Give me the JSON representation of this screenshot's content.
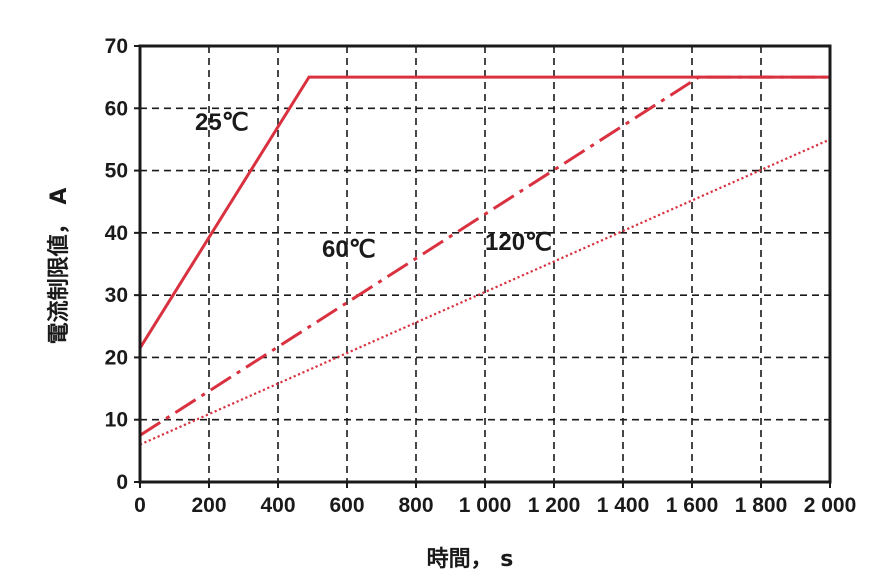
{
  "chart_data": {
    "type": "line",
    "title": "",
    "xlabel": "時間， s",
    "ylabel": "電流制限値， A",
    "xlim": [
      0,
      2000
    ],
    "ylim": [
      0,
      70
    ],
    "x_ticks": [
      0,
      200,
      400,
      600,
      800,
      1000,
      1200,
      1400,
      1600,
      1800,
      2000
    ],
    "x_tick_labels": [
      "0",
      "200",
      "400",
      "600",
      "800",
      "1 000",
      "1 200",
      "1 400",
      "1 600",
      "1 800",
      "2 000"
    ],
    "y_ticks": [
      0,
      10,
      20,
      30,
      40,
      50,
      60,
      70
    ],
    "y_tick_labels": [
      "0",
      "10",
      "20",
      "30",
      "40",
      "50",
      "60",
      "70"
    ],
    "grid": true,
    "grid_style": "dashed",
    "line_color": "#d9313f",
    "series": [
      {
        "name": "25℃",
        "style": "solid",
        "x": [
          0,
          490,
          2000
        ],
        "y": [
          21.5,
          65,
          65
        ]
      },
      {
        "name": "60℃",
        "style": "dashdot",
        "x": [
          0,
          1620,
          2000
        ],
        "y": [
          7.5,
          65,
          65
        ]
      },
      {
        "name": "120℃",
        "style": "dotted",
        "x": [
          0,
          2000
        ],
        "y": [
          6,
          55
        ]
      }
    ]
  }
}
